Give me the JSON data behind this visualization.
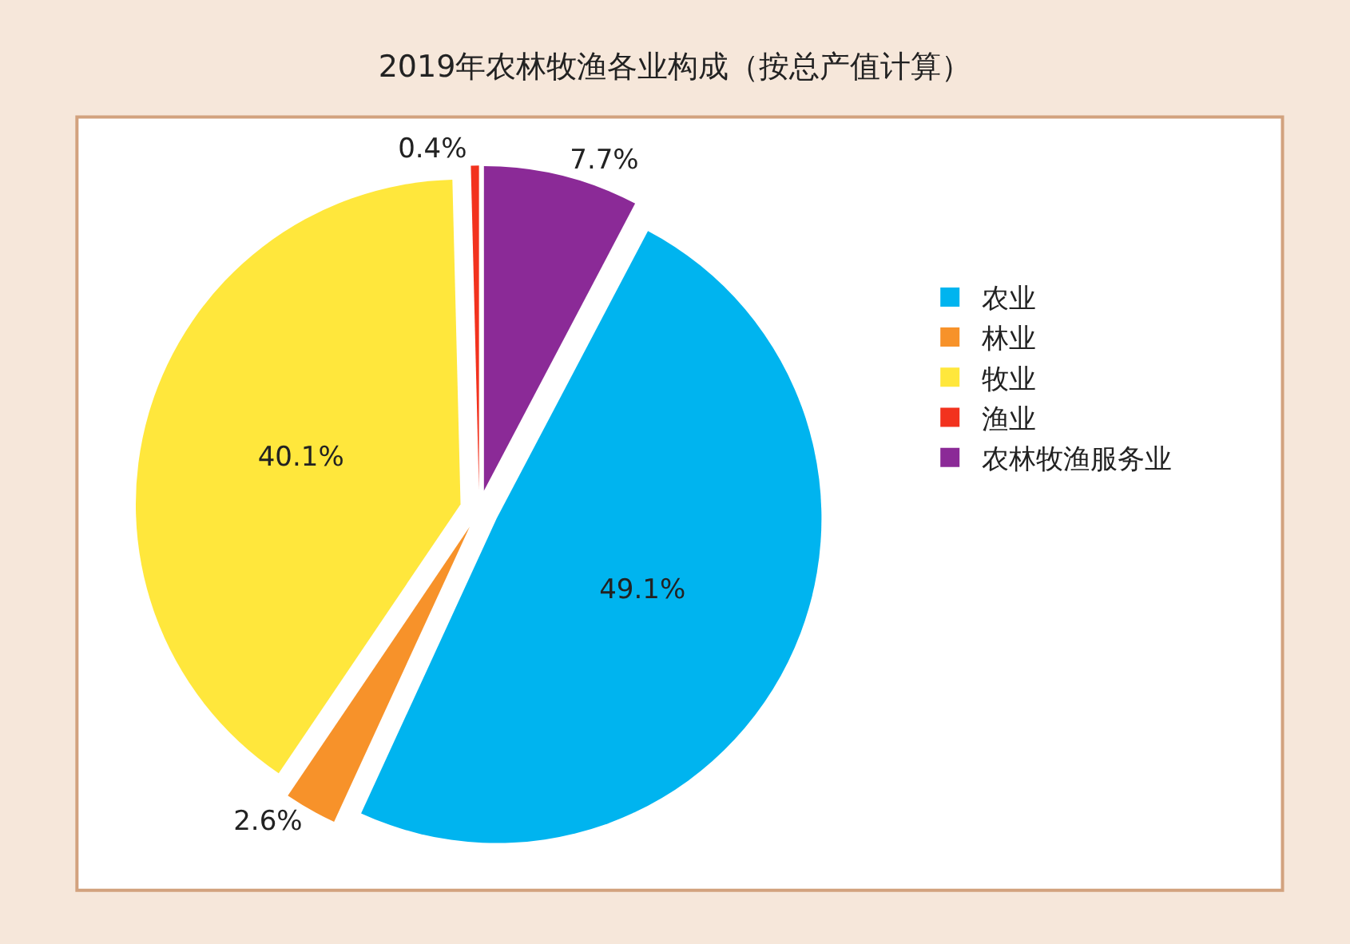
{
  "chart_data": {
    "type": "pie",
    "title": "2019年农林牧渔各业构成（按总产值计算）",
    "categories": [
      "农业",
      "林业",
      "牧业",
      "渔业",
      "农林牧渔服务业"
    ],
    "values": [
      49.1,
      2.6,
      40.1,
      0.4,
      7.7
    ],
    "colors": [
      "#00b4ef",
      "#f7922a",
      "#ffe73c",
      "#f2321e",
      "#8b2a97"
    ],
    "value_labels": [
      "49.1%",
      "2.6%",
      "40.1%",
      "0.4%",
      "7.7%"
    ],
    "legend": "right"
  }
}
